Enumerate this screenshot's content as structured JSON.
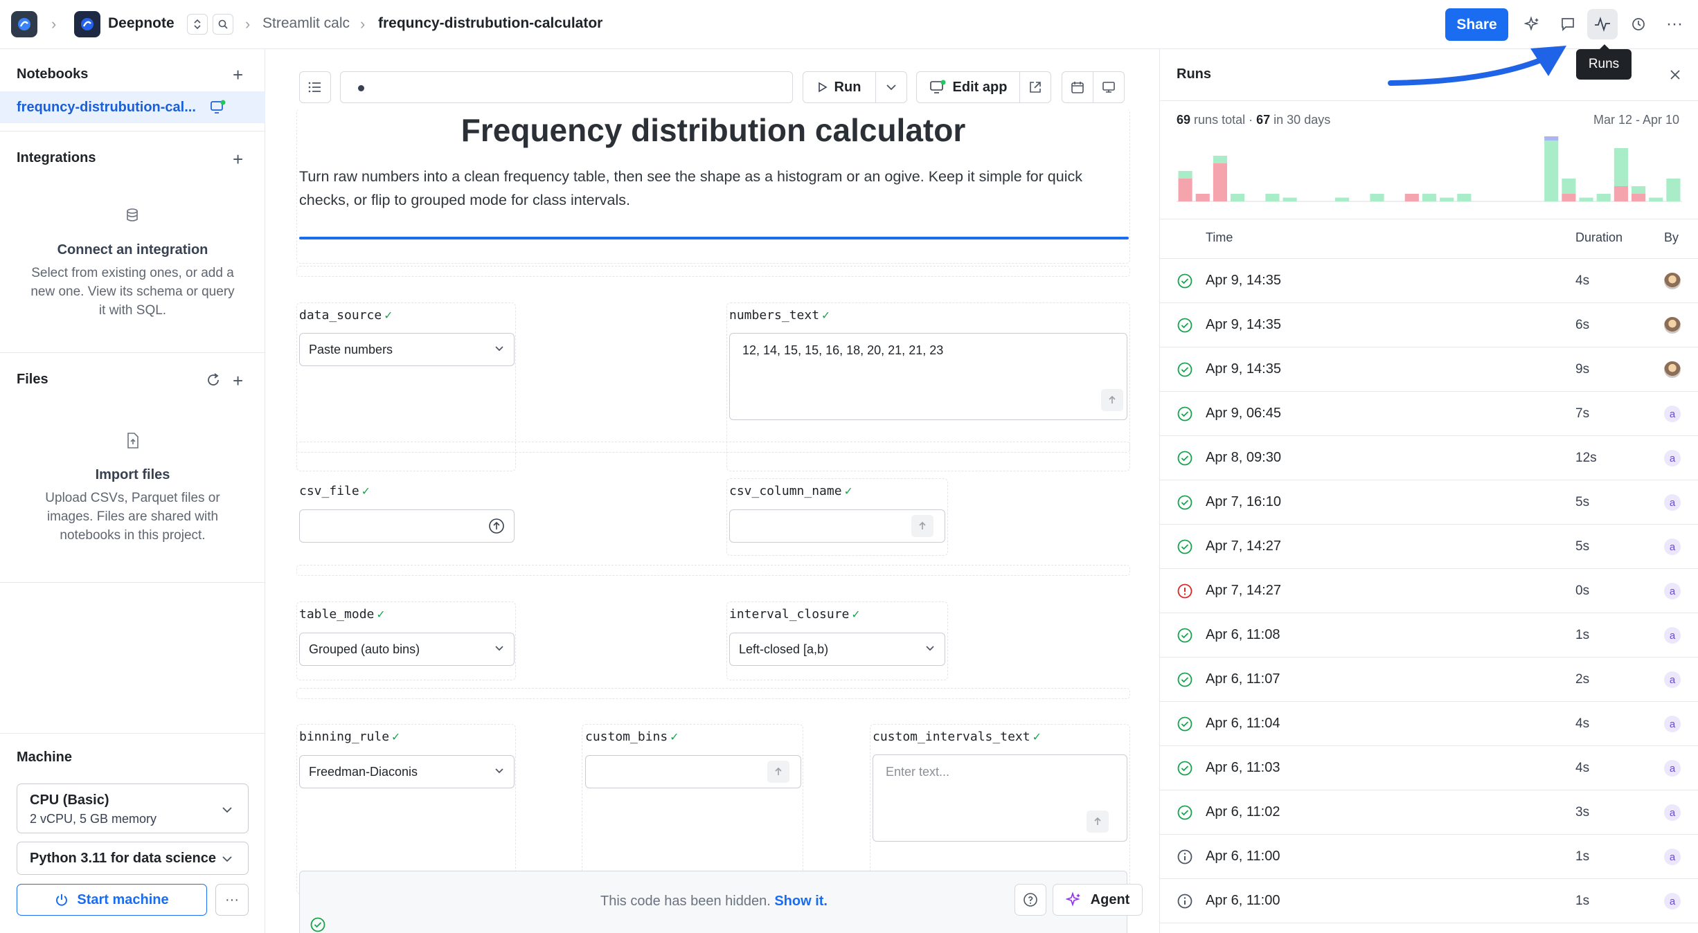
{
  "topbar": {
    "workspace": "Deepnote",
    "breadcrumb_project": "Streamlit calc",
    "breadcrumb_notebook": "frequncy-distrubution-calculator",
    "share_label": "Share",
    "tooltip": "Runs"
  },
  "sidebar": {
    "notebooks_title": "Notebooks",
    "notebook_item": "frequncy-distrubution-cal...",
    "integrations_title": "Integrations",
    "integrations_empty_title": "Connect an integration",
    "integrations_empty_desc": "Select from existing ones, or add a new one. View its schema or query it with SQL.",
    "files_title": "Files",
    "files_empty_title": "Import files",
    "files_empty_desc": "Upload CSVs, Parquet files or images. Files are shared with notebooks in this project.",
    "machine_title": "Machine",
    "machine_name": "CPU (Basic)",
    "machine_specs": "2 vCPU, 5 GB memory",
    "environment": "Python 3.11 for data science",
    "start_label": "Start machine"
  },
  "main": {
    "run_label": "Run",
    "edit_app_label": "Edit app",
    "app_title": "Frequency distribution calculator",
    "app_desc_line1": "Turn raw numbers into a clean frequency table, then see the shape as a histogram or an ogive. Keep it simple for quick",
    "app_desc_line2": "checks, or flip to grouped mode for class intervals.",
    "inputs": {
      "data_source": {
        "label": "data_source",
        "value": "Paste numbers"
      },
      "numbers_text": {
        "label": "numbers_text",
        "value": "12, 14, 15, 15, 16, 18, 20, 21, 21, 23"
      },
      "csv_file": {
        "label": "csv_file",
        "value": ""
      },
      "csv_column_name": {
        "label": "csv_column_name",
        "value": ""
      },
      "table_mode": {
        "label": "table_mode",
        "value": "Grouped (auto bins)"
      },
      "interval_closure": {
        "label": "interval_closure",
        "value": "Left-closed [a,b)"
      },
      "binning_rule": {
        "label": "binning_rule",
        "value": "Freedman-Diaconis"
      },
      "custom_bins": {
        "label": "custom_bins",
        "value": ""
      },
      "custom_intervals_text": {
        "label": "custom_intervals_text",
        "placeholder": "Enter text..."
      }
    },
    "hidden_code_text": "This code has been hidden.",
    "show_it_label": "Show it.",
    "agent_label": "Agent"
  },
  "runs": {
    "title": "Runs",
    "total": "69",
    "total_suffix": "runs total ·",
    "recent": "67",
    "recent_suffix": "in 30 days",
    "date_range": "Mar 12 - Apr 10",
    "col_time": "Time",
    "col_duration": "Duration",
    "col_by": "By",
    "rows": [
      {
        "time": "Apr 9, 14:35",
        "duration": "4s",
        "status": "success",
        "by": ""
      },
      {
        "time": "Apr 9, 14:35",
        "duration": "6s",
        "status": "success",
        "by": ""
      },
      {
        "time": "Apr 9, 14:35",
        "duration": "9s",
        "status": "success",
        "by": ""
      },
      {
        "time": "Apr 9, 06:45",
        "duration": "7s",
        "status": "success",
        "by": "a"
      },
      {
        "time": "Apr 8, 09:30",
        "duration": "12s",
        "status": "success",
        "by": "a"
      },
      {
        "time": "Apr 7, 16:10",
        "duration": "5s",
        "status": "success",
        "by": "a"
      },
      {
        "time": "Apr 7, 14:27",
        "duration": "5s",
        "status": "success",
        "by": "a"
      },
      {
        "time": "Apr 7, 14:27",
        "duration": "0s",
        "status": "error",
        "by": "a"
      },
      {
        "time": "Apr 6, 11:08",
        "duration": "1s",
        "status": "success",
        "by": "a"
      },
      {
        "time": "Apr 6, 11:07",
        "duration": "2s",
        "status": "success",
        "by": "a"
      },
      {
        "time": "Apr 6, 11:04",
        "duration": "4s",
        "status": "success",
        "by": "a"
      },
      {
        "time": "Apr 6, 11:03",
        "duration": "4s",
        "status": "success",
        "by": "a"
      },
      {
        "time": "Apr 6, 11:02",
        "duration": "3s",
        "status": "success",
        "by": "a"
      },
      {
        "time": "Apr 6, 11:00",
        "duration": "1s",
        "status": "info",
        "by": "a"
      },
      {
        "time": "Apr 6, 11:00",
        "duration": "1s",
        "status": "info",
        "by": "a"
      }
    ],
    "sparkline": [
      {
        "ok": 1,
        "fail": 3
      },
      {
        "ok": 0,
        "fail": 1
      },
      {
        "ok": 1,
        "fail": 5
      },
      {
        "ok": 1,
        "fail": 0
      },
      {
        "ok": 0,
        "fail": 0
      },
      {
        "ok": 1,
        "fail": 0
      },
      {
        "ok": 0.5,
        "fail": 0
      },
      {
        "ok": 0,
        "fail": 0
      },
      {
        "ok": 0,
        "fail": 0
      },
      {
        "ok": 0.5,
        "fail": 0
      },
      {
        "ok": 0,
        "fail": 0
      },
      {
        "ok": 1,
        "fail": 0
      },
      {
        "ok": 0,
        "fail": 0
      },
      {
        "ok": 0,
        "fail": 1
      },
      {
        "ok": 1,
        "fail": 0
      },
      {
        "ok": 0.5,
        "fail": 0
      },
      {
        "ok": 1,
        "fail": 0
      },
      {
        "ok": 0,
        "fail": 0
      },
      {
        "ok": 0,
        "fail": 0
      },
      {
        "ok": 0,
        "fail": 0
      },
      {
        "ok": 0,
        "fail": 0
      },
      {
        "ok": 8,
        "fail": 0
      },
      {
        "ok": 2,
        "fail": 1
      },
      {
        "ok": 0.5,
        "fail": 0
      },
      {
        "ok": 1,
        "fail": 0
      },
      {
        "ok": 5,
        "fail": 2
      },
      {
        "ok": 1,
        "fail": 1
      },
      {
        "ok": 0.5,
        "fail": 0
      },
      {
        "ok": 3,
        "fail": 0
      }
    ],
    "colors": {
      "ok": "#a9ecc8",
      "fail": "#f5a3ad",
      "cap": "#a9b6f0"
    }
  }
}
